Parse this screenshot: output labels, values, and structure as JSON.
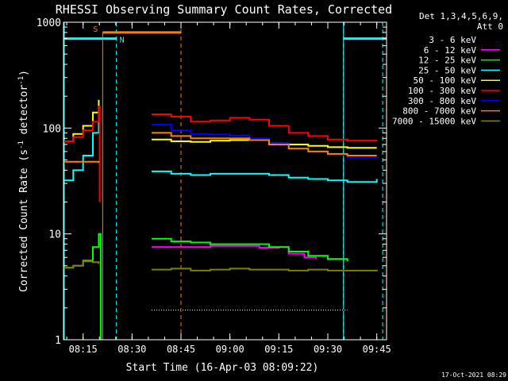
{
  "chart_data": {
    "type": "line",
    "title": "RHESSI Observing Summary Count Rates, Corrected",
    "xlabel": "Start Time (16-Apr-03 08:09:22)",
    "ylabel_prefix": "Corrected Count Rate (s",
    "ylabel_exp": "-1",
    "ylabel_suffix": " detector",
    "ylabel_close": ")",
    "ylabel_scale": "log",
    "xlim": [
      8.15,
      9.8
    ],
    "ylim": [
      1,
      1000
    ],
    "x_ticks": [
      {
        "value": 8.25,
        "label": "08:15"
      },
      {
        "value": 8.5,
        "label": "08:30"
      },
      {
        "value": 8.75,
        "label": "08:45"
      },
      {
        "value": 9.0,
        "label": "09:00"
      },
      {
        "value": 9.25,
        "label": "09:15"
      },
      {
        "value": 9.5,
        "label": "09:30"
      },
      {
        "value": 9.75,
        "label": "09:45"
      }
    ],
    "y_ticks": [
      {
        "value": 1,
        "label": "1"
      },
      {
        "value": 10,
        "label": "10"
      },
      {
        "value": 100,
        "label": "100"
      },
      {
        "value": 1000,
        "label": "1000"
      }
    ],
    "legend_header": [
      "Det 1,3,4,5,6,9,",
      "Att 0"
    ],
    "timestamp": "17-Oct-2021 08:29",
    "flag_labels": {
      "saa": "S",
      "night": "N"
    },
    "series": [
      {
        "name": "3 - 6 keV",
        "color": "#000000",
        "segments": [
          [
            [
              8.6,
              1.9
            ],
            [
              8.7,
              1.9
            ],
            [
              8.8,
              1.9
            ],
            [
              8.9,
              1.9
            ],
            [
              9.0,
              1.9
            ],
            [
              9.1,
              1.9
            ],
            [
              9.2,
              1.9
            ],
            [
              9.3,
              1.9
            ],
            [
              9.44,
              1.9
            ],
            [
              9.5,
              1.9
            ],
            [
              9.6,
              1.9
            ]
          ]
        ]
      },
      {
        "name": "6 - 12 keV",
        "color": "#ff00ff",
        "segments": [
          [
            [
              8.6,
              7.5
            ],
            [
              8.75,
              7.5
            ],
            [
              8.9,
              7.7
            ],
            [
              9.05,
              7.7
            ],
            [
              9.15,
              7.4
            ],
            [
              9.25,
              7.5
            ],
            [
              9.3,
              6.5
            ],
            [
              9.38,
              6.0
            ],
            [
              9.44,
              5.8
            ]
          ]
        ]
      },
      {
        "name": "12 - 25 keV",
        "color": "#00ff00",
        "segments": [
          [
            [
              8.15,
              4.8
            ],
            [
              8.2,
              5.0
            ],
            [
              8.25,
              5.6
            ],
            [
              8.3,
              7.5
            ],
            [
              8.33,
              10.0
            ],
            [
              8.34,
              1.0
            ]
          ],
          [
            [
              8.6,
              9.0
            ],
            [
              8.7,
              8.5
            ],
            [
              8.8,
              8.3
            ],
            [
              8.9,
              8.0
            ],
            [
              9.0,
              8.0
            ],
            [
              9.1,
              8.0
            ],
            [
              9.2,
              7.5
            ],
            [
              9.3,
              6.8
            ],
            [
              9.4,
              6.2
            ],
            [
              9.5,
              5.8
            ],
            [
              9.6,
              5.5
            ]
          ]
        ]
      },
      {
        "name": "25 - 50 keV",
        "color": "#00ffff",
        "segments": [
          [
            [
              8.15,
              32
            ],
            [
              8.2,
              40
            ],
            [
              8.25,
              55
            ],
            [
              8.3,
              90
            ],
            [
              8.33,
              140
            ]
          ],
          [
            [
              8.6,
              39
            ],
            [
              8.7,
              37
            ],
            [
              8.8,
              36
            ],
            [
              8.9,
              37
            ],
            [
              9.0,
              37
            ],
            [
              9.1,
              37
            ],
            [
              9.2,
              36
            ],
            [
              9.3,
              34
            ],
            [
              9.4,
              33
            ],
            [
              9.5,
              32
            ],
            [
              9.6,
              31
            ],
            [
              9.75,
              33
            ]
          ]
        ]
      },
      {
        "name": "50 - 100 keV",
        "color": "#ffff00",
        "segments": [
          [
            [
              8.15,
              75
            ],
            [
              8.2,
              88
            ],
            [
              8.25,
              105
            ],
            [
              8.3,
              140
            ],
            [
              8.33,
              185
            ]
          ],
          [
            [
              8.6,
              78
            ],
            [
              8.7,
              75
            ],
            [
              8.8,
              74
            ],
            [
              8.9,
              76
            ],
            [
              9.0,
              77
            ],
            [
              9.1,
              77
            ],
            [
              9.2,
              72
            ],
            [
              9.3,
              70
            ],
            [
              9.4,
              68
            ],
            [
              9.5,
              66
            ],
            [
              9.6,
              65
            ],
            [
              9.75,
              65
            ]
          ]
        ]
      },
      {
        "name": "100 - 300 keV",
        "color": "#ff0000",
        "segments": [
          [
            [
              8.15,
              75
            ],
            [
              8.2,
              82
            ],
            [
              8.25,
              95
            ],
            [
              8.3,
              115
            ],
            [
              8.33,
              160
            ],
            [
              8.335,
              20
            ]
          ],
          [
            [
              8.6,
              135
            ],
            [
              8.7,
              128
            ],
            [
              8.8,
              115
            ],
            [
              8.9,
              118
            ],
            [
              9.0,
              125
            ],
            [
              9.1,
              120
            ],
            [
              9.2,
              105
            ],
            [
              9.3,
              90
            ],
            [
              9.4,
              84
            ],
            [
              9.5,
              78
            ],
            [
              9.6,
              76
            ],
            [
              9.75,
              77
            ]
          ]
        ]
      },
      {
        "name": "300 - 800 keV",
        "color": "#0000ff",
        "segments": [
          [
            [
              8.6,
              108
            ],
            [
              8.7,
              95
            ],
            [
              8.8,
              88
            ],
            [
              8.9,
              87
            ],
            [
              9.0,
              85
            ],
            [
              9.1,
              80
            ],
            [
              9.2,
              72
            ],
            [
              9.3,
              64
            ],
            [
              9.4,
              60
            ],
            [
              9.5,
              56
            ],
            [
              9.6,
              53
            ],
            [
              9.75,
              54
            ]
          ]
        ]
      },
      {
        "name": "800 - 7000 keV",
        "color": "#ff8000",
        "segments": [
          [
            [
              8.15,
              48
            ],
            [
              8.22,
              48
            ],
            [
              8.28,
              48
            ],
            [
              8.32,
              48
            ],
            [
              8.33,
              47
            ]
          ],
          [
            [
              8.6,
              90
            ],
            [
              8.7,
              84
            ],
            [
              8.8,
              80
            ],
            [
              8.9,
              80
            ],
            [
              9.0,
              80
            ],
            [
              9.1,
              77
            ],
            [
              9.2,
              70
            ],
            [
              9.3,
              64
            ],
            [
              9.4,
              60
            ],
            [
              9.5,
              57
            ],
            [
              9.6,
              55
            ],
            [
              9.75,
              55
            ]
          ]
        ]
      },
      {
        "name": "7000 - 15000 keV",
        "color": "#808000",
        "segments": [
          [
            [
              8.15,
              4.8
            ],
            [
              8.2,
              5.0
            ],
            [
              8.25,
              5.5
            ],
            [
              8.3,
              5.4
            ],
            [
              8.33,
              5.2
            ]
          ],
          [
            [
              8.6,
              4.6
            ],
            [
              8.7,
              4.7
            ],
            [
              8.8,
              4.5
            ],
            [
              8.9,
              4.6
            ],
            [
              9.0,
              4.7
            ],
            [
              9.1,
              4.6
            ],
            [
              9.2,
              4.6
            ],
            [
              9.3,
              4.5
            ],
            [
              9.4,
              4.6
            ],
            [
              9.5,
              4.5
            ],
            [
              9.6,
              4.5
            ],
            [
              9.75,
              4.6
            ]
          ]
        ]
      }
    ],
    "flags": {
      "saa_bar": {
        "x": [
          8.35,
          8.75
        ],
        "y": 800,
        "color": "#ff8000"
      },
      "saa_vlines": [
        8.35,
        8.75
      ],
      "night_bars": [
        {
          "x": [
            8.15,
            8.42
          ],
          "y": 700
        },
        {
          "x": [
            9.58,
            9.8
          ],
          "y": 700
        }
      ],
      "night_vlines": [
        8.42,
        9.58,
        9.78
      ],
      "night_color": "#00ffff"
    }
  }
}
